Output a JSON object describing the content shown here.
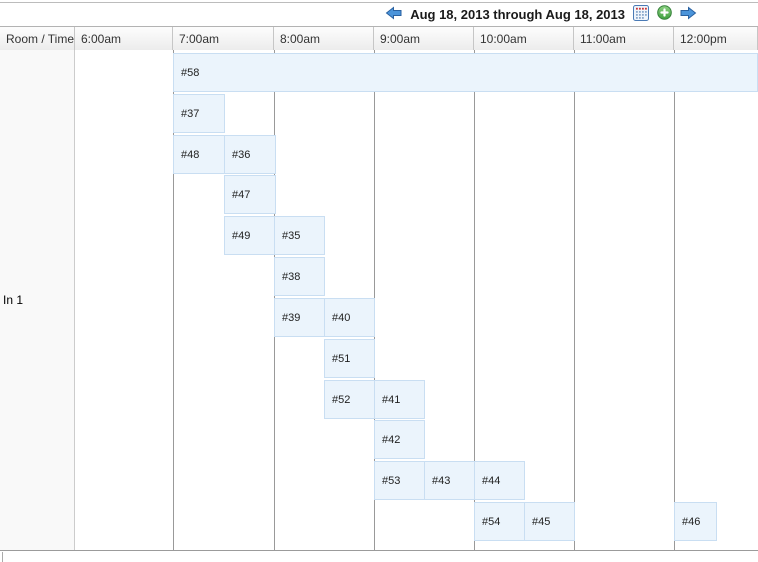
{
  "toolbar": {
    "date_range_label": "Aug 18, 2013 through Aug 18, 2013",
    "icons": {
      "prev": "arrow-left",
      "calendar": "calendar-grid",
      "add": "green-plus-circle",
      "next": "arrow-right"
    }
  },
  "grid": {
    "corner_header": "Room / Time",
    "time_headers": [
      "6:00am",
      "7:00am",
      "8:00am",
      "9:00am",
      "10:00am",
      "11:00am",
      "12:00pm"
    ],
    "rows": [
      {
        "label": "In 1"
      }
    ],
    "appointments": [
      {
        "label": "#58",
        "time": "7:00am",
        "lane": 0,
        "extends_to_edge": true
      },
      {
        "label": "#37",
        "time": "7:00am",
        "lane": 1
      },
      {
        "label": "#48",
        "time": "7:00am",
        "lane": 2
      },
      {
        "label": "#36",
        "time": "7:30am",
        "lane": 2
      },
      {
        "label": "#47",
        "time": "7:30am",
        "lane": 3
      },
      {
        "label": "#49",
        "time": "7:30am",
        "lane": 4
      },
      {
        "label": "#35",
        "time": "8:00am",
        "lane": 4
      },
      {
        "label": "#38",
        "time": "8:00am",
        "lane": 5
      },
      {
        "label": "#39",
        "time": "8:00am",
        "lane": 6
      },
      {
        "label": "#40",
        "time": "8:30am",
        "lane": 6
      },
      {
        "label": "#51",
        "time": "8:30am",
        "lane": 7
      },
      {
        "label": "#52",
        "time": "8:30am",
        "lane": 8
      },
      {
        "label": "#41",
        "time": "9:00am",
        "lane": 8
      },
      {
        "label": "#42",
        "time": "9:00am",
        "lane": 9
      },
      {
        "label": "#53",
        "time": "9:00am",
        "lane": 10
      },
      {
        "label": "#43",
        "time": "9:30am",
        "lane": 10
      },
      {
        "label": "#44",
        "time": "10:00am",
        "lane": 10
      },
      {
        "label": "#54",
        "time": "10:00am",
        "lane": 11
      },
      {
        "label": "#45",
        "time": "10:30am",
        "lane": 11
      },
      {
        "label": "#46",
        "time": "12:00pm",
        "lane": 11
      }
    ]
  },
  "colors": {
    "appointment_fill": "#ebf4fc",
    "appointment_border": "#c9def2",
    "gridline": "#999999",
    "header_border": "#a3a3a3",
    "accent_blue": "#4b94da",
    "accent_green": "#4caf50",
    "calendar_icon_red": "#cc3333"
  }
}
